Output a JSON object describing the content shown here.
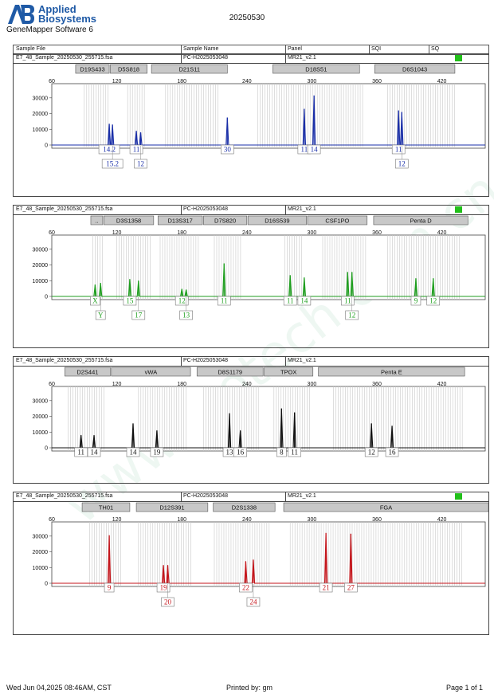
{
  "header": {
    "brand_line1": "Applied",
    "brand_line2": "Biosystems",
    "software": "GeneMapper Software 6",
    "date": "20250530"
  },
  "columns": {
    "sample_file": "Sample File",
    "sample_name": "Sample Name",
    "panel": "Panel",
    "sqi": "SQI",
    "sq": "SQ"
  },
  "sample": {
    "file": "E7_48_Sample_20250530_255715.fsa",
    "name": "PC-H2025053048",
    "panel": "MR21_v2.1"
  },
  "colors": {
    "blue": "#1a2fa8",
    "green": "#1f9e1f",
    "black": "#111111",
    "red": "#c4161c",
    "sq_ok": "#22c01a"
  },
  "chart_data": [
    {
      "type": "line",
      "dye": "blue",
      "x_ticks": [
        60,
        120,
        180,
        240,
        300,
        360,
        420
      ],
      "y_ticks": [
        0,
        10000,
        20000,
        30000
      ],
      "xlim": [
        60,
        460
      ],
      "ylim": [
        0,
        37000
      ],
      "markers": [
        "D19S433",
        "D5S818",
        "D21S11",
        "D18S51",
        "D6S1043"
      ],
      "marker_ranges": [
        [
          82,
          113
        ],
        [
          114,
          148
        ],
        [
          152,
          222
        ],
        [
          264,
          344
        ],
        [
          358,
          432
        ]
      ],
      "bin_ranges": [
        [
          90,
          114
        ],
        [
          130,
          147
        ],
        [
          165,
          215
        ],
        [
          250,
          347
        ],
        [
          370,
          432
        ]
      ],
      "peaks": [
        {
          "x": 113,
          "h": 13500,
          "label": "14.2",
          "row": 1
        },
        {
          "x": 116,
          "h": 13000,
          "label": "15.2",
          "row": 2
        },
        {
          "x": 138,
          "h": 9000,
          "label": "11",
          "row": 1
        },
        {
          "x": 142,
          "h": 8000,
          "label": "12",
          "row": 2
        },
        {
          "x": 222,
          "h": 17500,
          "label": "30",
          "row": 1
        },
        {
          "x": 293,
          "h": 23000,
          "label": "11",
          "row": 1
        },
        {
          "x": 302,
          "h": 31500,
          "label": "14",
          "row": 1
        },
        {
          "x": 380,
          "h": 22000,
          "label": "11",
          "row": 1
        },
        {
          "x": 383,
          "h": 21000,
          "label": "12",
          "row": 2
        }
      ]
    },
    {
      "type": "line",
      "dye": "green",
      "x_ticks": [
        60,
        120,
        180,
        240,
        300,
        360,
        420
      ],
      "y_ticks": [
        0,
        10000,
        20000,
        30000
      ],
      "xlim": [
        60,
        460
      ],
      "ylim": [
        0,
        37000
      ],
      "markers": [
        "..",
        "D3S1358",
        "D13S317",
        "D7S820",
        "D16S539",
        "CSF1PO",
        "Penta D"
      ],
      "marker_ranges": [
        [
          96,
          107
        ],
        [
          108,
          154
        ],
        [
          158,
          199
        ],
        [
          200,
          240
        ],
        [
          241,
          295
        ],
        [
          296,
          351
        ],
        [
          357,
          444
        ]
      ],
      "bin_ranges": [
        [
          98,
          107
        ],
        [
          120,
          152
        ],
        [
          160,
          196
        ],
        [
          210,
          236
        ],
        [
          275,
          292
        ],
        [
          310,
          350
        ],
        [
          370,
          436
        ]
      ],
      "peaks": [
        {
          "x": 100,
          "h": 7500,
          "label": "X",
          "row": 1
        },
        {
          "x": 105,
          "h": 8500,
          "label": "Y",
          "row": 2
        },
        {
          "x": 132,
          "h": 11000,
          "label": "15",
          "row": 1
        },
        {
          "x": 140,
          "h": 10000,
          "label": "17",
          "row": 2
        },
        {
          "x": 180,
          "h": 4800,
          "label": "12",
          "row": 1
        },
        {
          "x": 184,
          "h": 4300,
          "label": "13",
          "row": 2
        },
        {
          "x": 219,
          "h": 21000,
          "label": "11",
          "row": 1
        },
        {
          "x": 280,
          "h": 13500,
          "label": "11",
          "row": 1
        },
        {
          "x": 293,
          "h": 12000,
          "label": "14",
          "row": 1
        },
        {
          "x": 333,
          "h": 15500,
          "label": "11",
          "row": 1
        },
        {
          "x": 337,
          "h": 15500,
          "label": "12",
          "row": 2
        },
        {
          "x": 396,
          "h": 11500,
          "label": "9",
          "row": 1
        },
        {
          "x": 412,
          "h": 11500,
          "label": "12",
          "row": 1
        }
      ]
    },
    {
      "type": "line",
      "dye": "black",
      "x_ticks": [
        60,
        120,
        180,
        240,
        300,
        360,
        420
      ],
      "y_ticks": [
        0,
        10000,
        20000,
        30000
      ],
      "xlim": [
        60,
        460
      ],
      "ylim": [
        0,
        37000
      ],
      "markers": [
        "D2S441",
        "vWA",
        "D8S1179",
        "TPOX",
        "Penta E"
      ],
      "marker_ranges": [
        [
          72,
          114
        ],
        [
          115,
          188
        ],
        [
          194,
          255
        ],
        [
          256,
          301
        ],
        [
          306,
          441
        ]
      ],
      "bin_ranges": [
        [
          75,
          110
        ],
        [
          140,
          185
        ],
        [
          200,
          252
        ],
        [
          265,
          298
        ],
        [
          320,
          440
        ]
      ],
      "peaks": [
        {
          "x": 87,
          "h": 8000,
          "label": "11",
          "row": 1
        },
        {
          "x": 99,
          "h": 8000,
          "label": "14",
          "row": 1
        },
        {
          "x": 135,
          "h": 15500,
          "label": "14",
          "row": 1
        },
        {
          "x": 157,
          "h": 11000,
          "label": "19",
          "row": 1
        },
        {
          "x": 224,
          "h": 22000,
          "label": "13",
          "row": 1
        },
        {
          "x": 234,
          "h": 11000,
          "label": "16",
          "row": 1
        },
        {
          "x": 272,
          "h": 25000,
          "label": "8",
          "row": 1
        },
        {
          "x": 284,
          "h": 22500,
          "label": "11",
          "row": 1
        },
        {
          "x": 355,
          "h": 15500,
          "label": "12",
          "row": 1
        },
        {
          "x": 374,
          "h": 14000,
          "label": "16",
          "row": 1
        }
      ]
    },
    {
      "type": "line",
      "dye": "red",
      "x_ticks": [
        60,
        120,
        180,
        240,
        300,
        360,
        420
      ],
      "y_ticks": [
        0,
        10000,
        20000,
        30000
      ],
      "xlim": [
        60,
        460
      ],
      "ylim": [
        0,
        37000
      ],
      "markers": [
        "TH01",
        "D12S391",
        "D2S1338",
        "FGA"
      ],
      "marker_ranges": [
        [
          88,
          132
        ],
        [
          138,
          204
        ],
        [
          209,
          266
        ],
        [
          274,
          463
        ]
      ],
      "bin_ranges": [
        [
          95,
          125
        ],
        [
          140,
          190
        ],
        [
          210,
          262
        ],
        [
          280,
          440
        ]
      ],
      "peaks": [
        {
          "x": 113,
          "h": 30500,
          "label": "9",
          "row": 1
        },
        {
          "x": 163,
          "h": 11500,
          "label": "19",
          "row": 1
        },
        {
          "x": 167,
          "h": 11500,
          "label": "20",
          "row": 2
        },
        {
          "x": 239,
          "h": 14000,
          "label": "22",
          "row": 1
        },
        {
          "x": 246,
          "h": 15000,
          "label": "24",
          "row": 2
        },
        {
          "x": 313,
          "h": 32000,
          "label": "21",
          "row": 1
        },
        {
          "x": 336,
          "h": 31500,
          "label": "27",
          "row": 1
        }
      ]
    }
  ],
  "footer": {
    "date": "Wed Jun 04,2025 08:46AM, CST",
    "printed": "Printed by: gm",
    "page": "Page 1 of 1"
  }
}
